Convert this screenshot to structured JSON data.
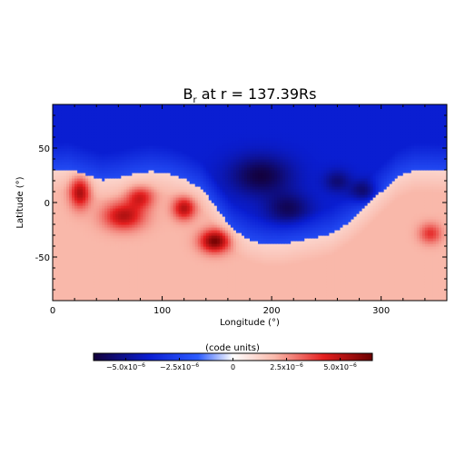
{
  "chart_data": {
    "type": "heatmap",
    "title": {
      "prefix": "B",
      "subscript": "r",
      "suffix": " at r = 137.39Rs"
    },
    "xlabel": "Longitude (°)",
    "ylabel": "Latitude (°)",
    "xlim": [
      0,
      360
    ],
    "ylim": [
      -90,
      90
    ],
    "xticks": [
      {
        "value": 0,
        "label": "0"
      },
      {
        "value": 100,
        "label": "100"
      },
      {
        "value": 200,
        "label": "200"
      },
      {
        "value": 300,
        "label": "300"
      }
    ],
    "yticks": [
      {
        "value": 50,
        "label": "50"
      },
      {
        "value": 0,
        "label": "0"
      },
      {
        "value": -50,
        "label": "-50"
      }
    ],
    "field": {
      "description_units": "(code units)",
      "neutral_line": [
        [
          0,
          30
        ],
        [
          15,
          31
        ],
        [
          30,
          26
        ],
        [
          45,
          21
        ],
        [
          60,
          23
        ],
        [
          75,
          27
        ],
        [
          90,
          29
        ],
        [
          105,
          27
        ],
        [
          120,
          22
        ],
        [
          135,
          14
        ],
        [
          145,
          2
        ],
        [
          155,
          -12
        ],
        [
          165,
          -25
        ],
        [
          180,
          -34
        ],
        [
          195,
          -38
        ],
        [
          210,
          -38
        ],
        [
          225,
          -35
        ],
        [
          240,
          -32
        ],
        [
          255,
          -28
        ],
        [
          270,
          -18
        ],
        [
          285,
          -5
        ],
        [
          300,
          10
        ],
        [
          315,
          24
        ],
        [
          330,
          30
        ],
        [
          345,
          30
        ],
        [
          360,
          29
        ]
      ],
      "positive_hotspots": [
        {
          "lon": 25,
          "lat": 10,
          "strength": 0.75,
          "spread_lon": 9,
          "spread_lat": 14
        },
        {
          "lon": 65,
          "lat": -12,
          "strength": 0.7,
          "spread_lon": 18,
          "spread_lat": 12
        },
        {
          "lon": 80,
          "lat": 5,
          "strength": 0.55,
          "spread_lon": 12,
          "spread_lat": 10
        },
        {
          "lon": 120,
          "lat": -5,
          "strength": 0.7,
          "spread_lon": 10,
          "spread_lat": 10
        },
        {
          "lon": 148,
          "lat": -35,
          "strength": 0.95,
          "spread_lon": 13,
          "spread_lat": 10
        },
        {
          "lon": 345,
          "lat": -28,
          "strength": 0.45,
          "spread_lon": 10,
          "spread_lat": 9
        }
      ],
      "negative_hotspots": [
        {
          "lon": 190,
          "lat": 25,
          "strength": 0.85,
          "spread_lon": 28,
          "spread_lat": 18
        },
        {
          "lon": 215,
          "lat": -5,
          "strength": 0.7,
          "spread_lon": 20,
          "spread_lat": 14
        },
        {
          "lon": 285,
          "lat": 10,
          "strength": 0.75,
          "spread_lon": 12,
          "spread_lat": 10
        },
        {
          "lon": 260,
          "lat": 20,
          "strength": 0.55,
          "spread_lon": 12,
          "spread_lat": 10
        }
      ]
    },
    "colorbar": {
      "label": "(code units)",
      "range": [
        -6.5e-06,
        6.5e-06
      ],
      "ticks": [
        {
          "value": -5e-06,
          "mantissa": "−5.0x10",
          "exponent": "−6"
        },
        {
          "value": -2.5e-06,
          "mantissa": "−2.5x10",
          "exponent": "−6"
        },
        {
          "value": 0,
          "mantissa": "0",
          "exponent": ""
        },
        {
          "value": 2.5e-06,
          "mantissa": "2.5x10",
          "exponent": "−6"
        },
        {
          "value": 5e-06,
          "mantissa": "5.0x10",
          "exponent": "−6"
        }
      ],
      "colors": {
        "neg_max": "#13003a",
        "neg_mid": "#0a1ed2",
        "neg_low": "#2d5cff",
        "zero": "#ffffff",
        "pos_low": "#f9b8aa",
        "pos_mid": "#e42020",
        "pos_max": "#6b0000"
      }
    }
  }
}
